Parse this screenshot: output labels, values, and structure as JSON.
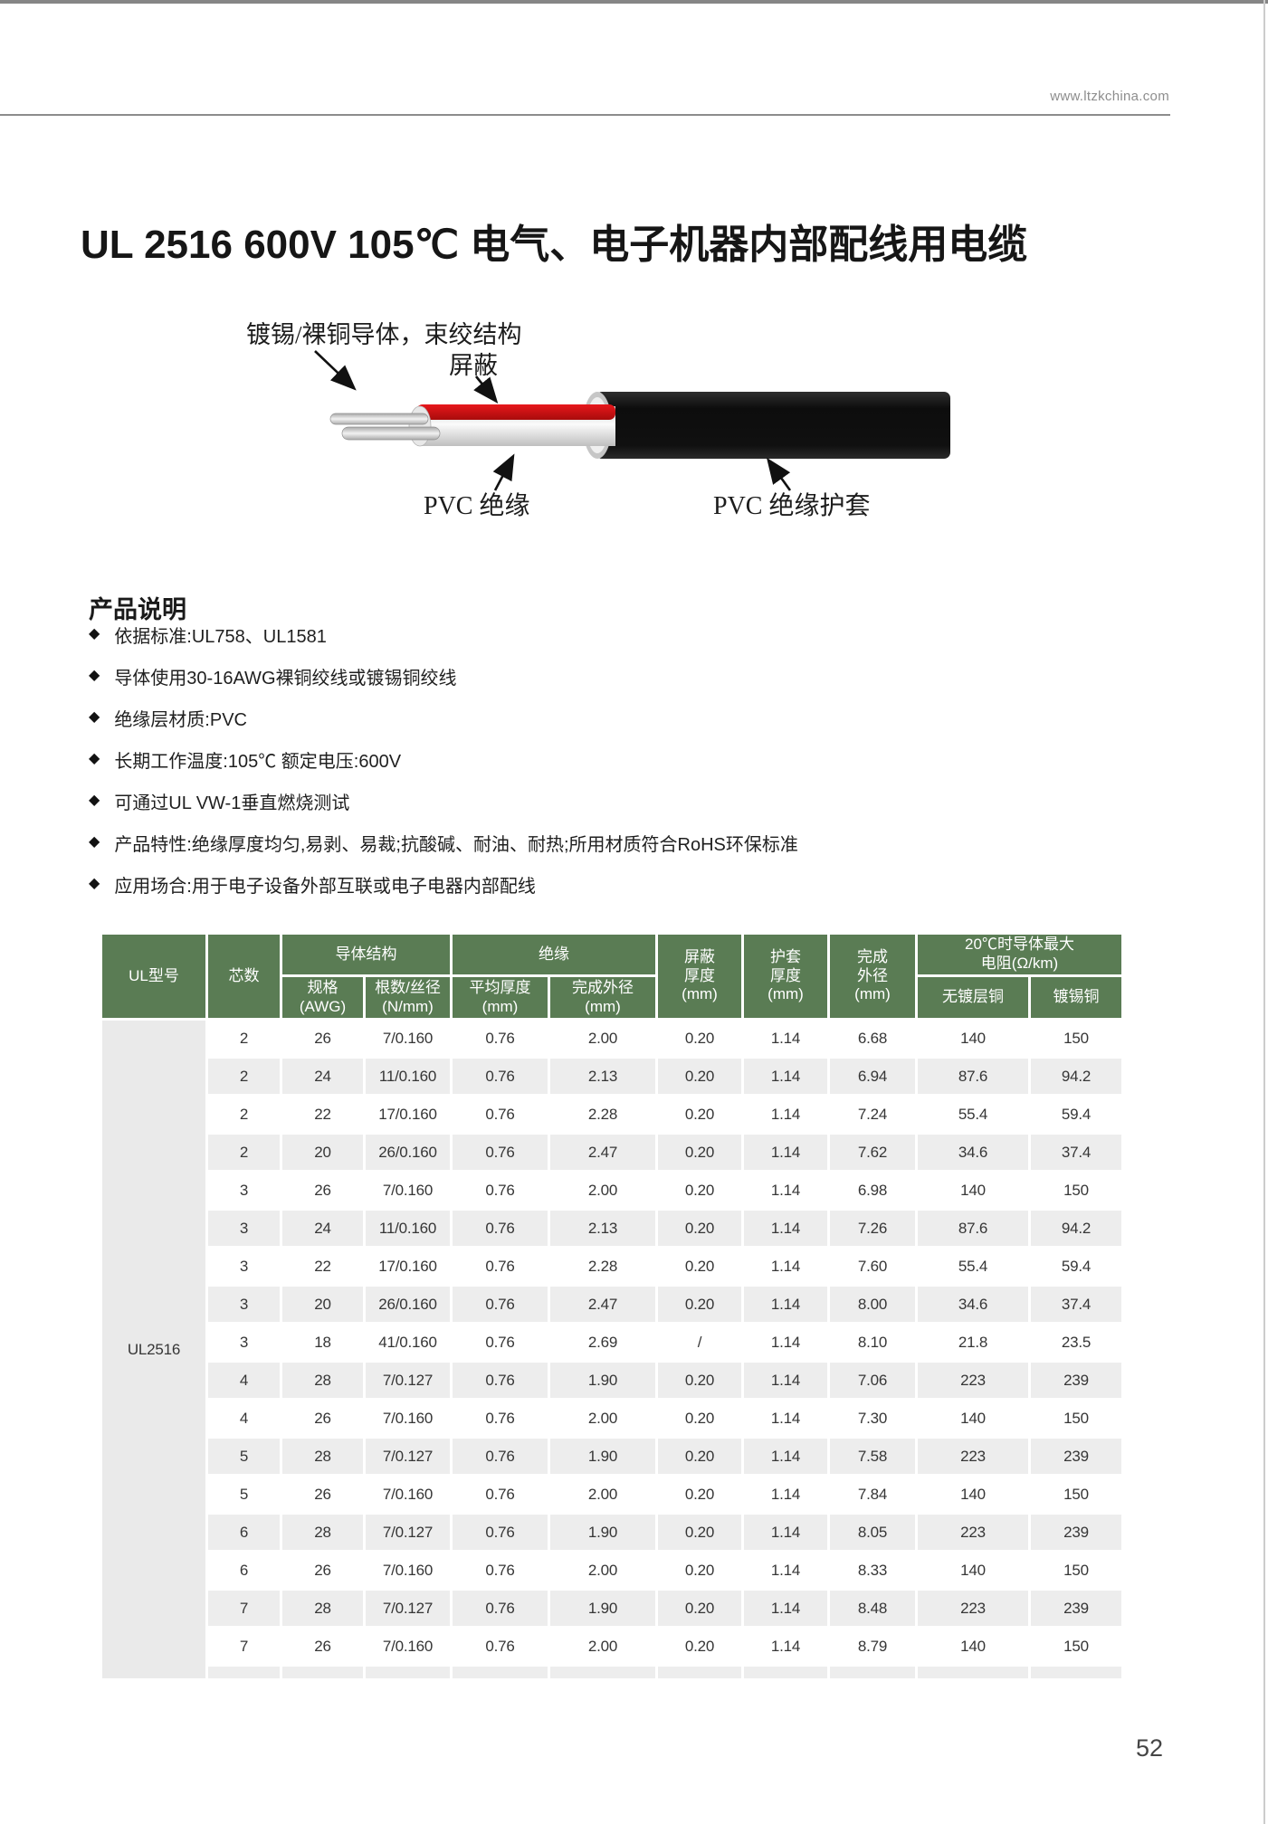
{
  "page": {
    "website": "www.ltzkchina.com",
    "title": "UL 2516  600V 105℃ 电气、电子机器内部配线用电缆",
    "page_number": "52"
  },
  "diagram": {
    "labels": {
      "conductor": "镀锡/裸铜导体，束绞结构",
      "shield": "屏蔽",
      "insulation": "PVC 绝缘",
      "jacket": "PVC 绝缘护套"
    },
    "colors": {
      "jacket": "#141414",
      "shield_band": "#cf1115",
      "insulation": "#e9e9e9",
      "wire": "#d6d6d6"
    }
  },
  "description": {
    "heading": "产品说明",
    "bullets": [
      "依据标准:UL758、UL1581",
      "导体使用30-16AWG裸铜绞线或镀锡铜绞线",
      "绝缘层材质:PVC",
      "长期工作温度:105℃ 额定电压:600V",
      "可通过UL VW-1垂直燃烧测试",
      "产品特性:绝缘厚度均匀,易剥、易裁;抗酸碱、耐油、耐热;所用材质符合RoHS环保标准",
      "应用场合:用于电子设备外部互联或电子电器内部配线"
    ]
  },
  "spec_table": {
    "colors": {
      "header_bg": "#5a7c54",
      "alt_row_bg": "#ededed",
      "ul_column_bg": "#eaeaea"
    },
    "columns": {
      "ul_type": "UL型号",
      "cores": "芯数",
      "conductor_group": "导体结构",
      "spec_awg": "规格\n(AWG)",
      "strands": "根数/丝径\n(N/mm)",
      "insulation_group": "绝缘",
      "avg_thickness": "平均厚度\n(mm)",
      "finished_od_ins": "完成外径\n(mm)",
      "shield_thickness": "屏蔽\n厚度\n(mm)",
      "jacket_thickness": "护套\n厚度\n(mm)",
      "finished_od": "完成\n外径\n(mm)",
      "resistance_group": "20℃时导体最大\n电阻(Ω/km)",
      "bare_copper": "无镀层铜",
      "tinned_copper": "镀锡铜"
    },
    "ul_type_value": "UL2516",
    "rows": [
      [
        "2",
        "26",
        "7/0.160",
        "0.76",
        "2.00",
        "0.20",
        "1.14",
        "6.68",
        "140",
        "150"
      ],
      [
        "2",
        "24",
        "11/0.160",
        "0.76",
        "2.13",
        "0.20",
        "1.14",
        "6.94",
        "87.6",
        "94.2"
      ],
      [
        "2",
        "22",
        "17/0.160",
        "0.76",
        "2.28",
        "0.20",
        "1.14",
        "7.24",
        "55.4",
        "59.4"
      ],
      [
        "2",
        "20",
        "26/0.160",
        "0.76",
        "2.47",
        "0.20",
        "1.14",
        "7.62",
        "34.6",
        "37.4"
      ],
      [
        "3",
        "26",
        "7/0.160",
        "0.76",
        "2.00",
        "0.20",
        "1.14",
        "6.98",
        "140",
        "150"
      ],
      [
        "3",
        "24",
        "11/0.160",
        "0.76",
        "2.13",
        "0.20",
        "1.14",
        "7.26",
        "87.6",
        "94.2"
      ],
      [
        "3",
        "22",
        "17/0.160",
        "0.76",
        "2.28",
        "0.20",
        "1.14",
        "7.60",
        "55.4",
        "59.4"
      ],
      [
        "3",
        "20",
        "26/0.160",
        "0.76",
        "2.47",
        "0.20",
        "1.14",
        "8.00",
        "34.6",
        "37.4"
      ],
      [
        "3",
        "18",
        "41/0.160",
        "0.76",
        "2.69",
        "/",
        "1.14",
        "8.10",
        "21.8",
        "23.5"
      ],
      [
        "4",
        "28",
        "7/0.127",
        "0.76",
        "1.90",
        "0.20",
        "1.14",
        "7.06",
        "223",
        "239"
      ],
      [
        "4",
        "26",
        "7/0.160",
        "0.76",
        "2.00",
        "0.20",
        "1.14",
        "7.30",
        "140",
        "150"
      ],
      [
        "5",
        "28",
        "7/0.127",
        "0.76",
        "1.90",
        "0.20",
        "1.14",
        "7.58",
        "223",
        "239"
      ],
      [
        "5",
        "26",
        "7/0.160",
        "0.76",
        "2.00",
        "0.20",
        "1.14",
        "7.84",
        "140",
        "150"
      ],
      [
        "6",
        "28",
        "7/0.127",
        "0.76",
        "1.90",
        "0.20",
        "1.14",
        "8.05",
        "223",
        "239"
      ],
      [
        "6",
        "26",
        "7/0.160",
        "0.76",
        "2.00",
        "0.20",
        "1.14",
        "8.33",
        "140",
        "150"
      ],
      [
        "7",
        "28",
        "7/0.127",
        "0.76",
        "1.90",
        "0.20",
        "1.14",
        "8.48",
        "223",
        "239"
      ],
      [
        "7",
        "26",
        "7/0.160",
        "0.76",
        "2.00",
        "0.20",
        "1.14",
        "8.79",
        "140",
        "150"
      ]
    ]
  }
}
